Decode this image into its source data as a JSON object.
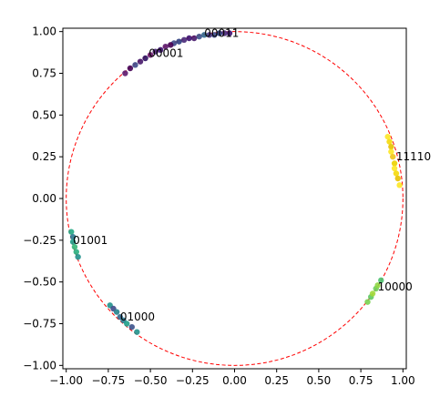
{
  "chart_data": {
    "type": "scatter",
    "title": "",
    "xlabel": "",
    "ylabel": "",
    "xlim": [
      -1.02,
      1.02
    ],
    "ylim": [
      -1.02,
      1.02
    ],
    "xticks": [
      "−1.00",
      "−0.75",
      "−0.50",
      "−0.25",
      "0.00",
      "0.25",
      "0.50",
      "0.75",
      "1.00"
    ],
    "xtick_values": [
      -1.0,
      -0.75,
      -0.5,
      -0.25,
      0.0,
      0.25,
      0.5,
      0.75,
      1.0
    ],
    "yticks": [
      "1.00",
      "0.75",
      "0.50",
      "0.25",
      "0.00",
      "−0.25",
      "−0.50",
      "−0.75",
      "−1.00"
    ],
    "ytick_values": [
      1.0,
      0.75,
      0.5,
      0.25,
      0.0,
      -0.25,
      -0.5,
      -0.75,
      -1.0
    ],
    "grid": false,
    "unit_circle": {
      "radius": 1.0,
      "color": "#ff0000",
      "style": "dashed"
    },
    "clusters": [
      {
        "label": "00011",
        "label_at": [
          -0.18,
          0.99
        ],
        "points": [
          [
            -0.03,
            0.99
          ],
          [
            -0.06,
            0.99
          ],
          [
            -0.09,
            0.99
          ],
          [
            -0.12,
            0.98
          ],
          [
            -0.15,
            0.98
          ],
          [
            -0.18,
            0.98
          ],
          [
            -0.21,
            0.97
          ],
          [
            -0.24,
            0.96
          ],
          [
            -0.27,
            0.96
          ],
          [
            -0.3,
            0.95
          ],
          [
            -0.33,
            0.94
          ],
          [
            -0.36,
            0.93
          ]
        ],
        "colors": [
          "#3b0f70",
          "#482878",
          "#2c3e80",
          "#3e4a89",
          "#46327e",
          "#31688e",
          "#3b528b",
          "#481a6c"
        ]
      },
      {
        "label": "00001",
        "label_at": [
          -0.51,
          0.87
        ],
        "points": [
          [
            -0.38,
            0.92
          ],
          [
            -0.41,
            0.91
          ],
          [
            -0.44,
            0.89
          ],
          [
            -0.47,
            0.88
          ],
          [
            -0.5,
            0.86
          ],
          [
            -0.53,
            0.84
          ],
          [
            -0.56,
            0.82
          ],
          [
            -0.59,
            0.8
          ],
          [
            -0.62,
            0.78
          ],
          [
            -0.65,
            0.75
          ]
        ],
        "colors": [
          "#440154",
          "#5c1a6e",
          "#3b0f70",
          "#482475",
          "#6a176e",
          "#2d1160",
          "#481a6c",
          "#3e4a89"
        ]
      },
      {
        "label": "11110",
        "label_at": [
          0.96,
          0.25
        ],
        "points": [
          [
            0.91,
            0.37
          ],
          [
            0.92,
            0.34
          ],
          [
            0.93,
            0.31
          ],
          [
            0.93,
            0.28
          ],
          [
            0.94,
            0.25
          ],
          [
            0.95,
            0.21
          ],
          [
            0.95,
            0.18
          ],
          [
            0.96,
            0.15
          ],
          [
            0.97,
            0.12
          ],
          [
            0.98,
            0.08
          ]
        ],
        "colors": [
          "#fde725",
          "#f5d90a",
          "#e8c100",
          "#fde725",
          "#f0c419",
          "#ecd000"
        ]
      },
      {
        "label": "10000",
        "label_at": [
          0.85,
          -0.53
        ],
        "points": [
          [
            0.79,
            -0.62
          ],
          [
            0.81,
            -0.59
          ],
          [
            0.82,
            -0.57
          ],
          [
            0.84,
            -0.54
          ],
          [
            0.85,
            -0.52
          ],
          [
            0.87,
            -0.49
          ]
        ],
        "colors": [
          "#7ad151",
          "#5ec962",
          "#a0da39",
          "#6ece58",
          "#8fd744",
          "#4ac16d"
        ]
      },
      {
        "label": "01001",
        "label_at": [
          -0.96,
          -0.25
        ],
        "points": [
          [
            -0.97,
            -0.2
          ],
          [
            -0.96,
            -0.23
          ],
          [
            -0.96,
            -0.26
          ],
          [
            -0.95,
            -0.29
          ],
          [
            -0.94,
            -0.32
          ],
          [
            -0.93,
            -0.35
          ]
        ],
        "colors": [
          "#22a884",
          "#2a788e",
          "#1f9e89",
          "#35b779",
          "#29af7f",
          "#21918c"
        ]
      },
      {
        "label": "01000",
        "label_at": [
          -0.68,
          -0.71
        ],
        "points": [
          [
            -0.74,
            -0.64
          ],
          [
            -0.72,
            -0.66
          ],
          [
            -0.7,
            -0.68
          ],
          [
            -0.68,
            -0.71
          ],
          [
            -0.66,
            -0.73
          ],
          [
            -0.64,
            -0.75
          ],
          [
            -0.61,
            -0.77
          ],
          [
            -0.58,
            -0.8
          ]
        ],
        "colors": [
          "#21918c",
          "#3e4a89",
          "#26828e",
          "#31688e",
          "#2a788e",
          "#1f9e89",
          "#3b528b"
        ]
      }
    ]
  }
}
